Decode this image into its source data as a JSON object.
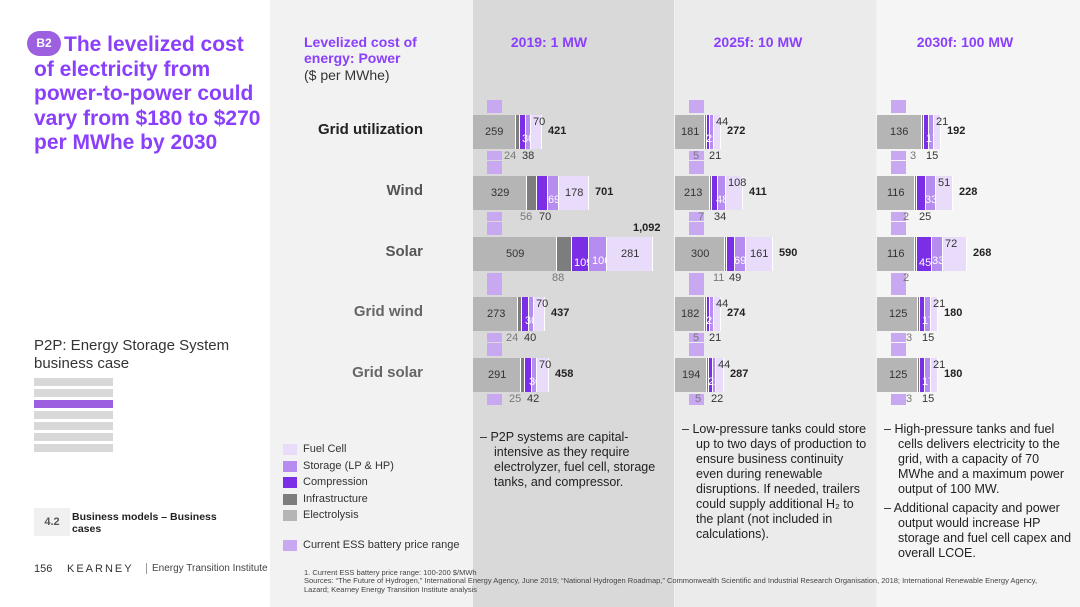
{
  "badge": "B2",
  "headline": "The levelized cost of electricity from power-to-power could vary from $180 to $270 per MWhe by 2030",
  "subtitle": "P2P: Energy Storage System business case",
  "section_number": "4.2",
  "section_title": "Business models – Business cases",
  "page_number": "156",
  "brand": "KEARNEY",
  "institute": "Energy Transition Institute",
  "chart_data": {
    "type": "bar",
    "orientation": "horizontal-stacked",
    "title": "Levelized cost of energy: Power",
    "unit": "($ per MWhe)",
    "categories": [
      "Grid utilization",
      "Wind",
      "Solar",
      "Grid wind",
      "Grid solar"
    ],
    "segment_order": [
      "Electrolysis",
      "Infrastructure",
      "Compression",
      "Storage (LP & HP)",
      "Fuel Cell"
    ],
    "panels": [
      {
        "name": "2019: 1 MW",
        "rows": [
          {
            "values": [
              259,
              24,
              38,
              30,
              70
            ],
            "total": "421",
            "battery_band": [
              100,
              200
            ]
          },
          {
            "values": [
              329,
              56,
              70,
              69,
              178
            ],
            "total": "701",
            "battery_band": [
              100,
              200
            ]
          },
          {
            "values": [
              509,
              88,
              109,
              106,
              281
            ],
            "total": "1,092",
            "battery_band": [
              100,
              200
            ]
          },
          {
            "values": [
              273,
              24,
              40,
              30,
              70
            ],
            "total": "437",
            "battery_band": [
              100,
              200
            ]
          },
          {
            "values": [
              291,
              25,
              42,
              30,
              70
            ],
            "total": "458",
            "battery_band": [
              100,
              200
            ]
          }
        ]
      },
      {
        "name": "2025f: 10 MW",
        "rows": [
          {
            "values": [
              181,
              5,
              21,
              22,
              44
            ],
            "total": "272",
            "battery_band": [
              100,
              200
            ]
          },
          {
            "values": [
              213,
              7,
              34,
              48,
              108
            ],
            "total": "411",
            "battery_band": [
              100,
              200
            ]
          },
          {
            "values": [
              300,
              11,
              49,
              69,
              161
            ],
            "total": "590",
            "battery_band": [
              100,
              200
            ]
          },
          {
            "values": [
              182,
              5,
              21,
              22,
              44
            ],
            "total": "274",
            "battery_band": [
              100,
              200
            ]
          },
          {
            "values": [
              194,
              5,
              22,
              22,
              44
            ],
            "total": "287",
            "battery_band": [
              100,
              200
            ]
          }
        ]
      },
      {
        "name": "2030f: 100 MW",
        "rows": [
          {
            "values": [
              136,
              3,
              15,
              17,
              21
            ],
            "total": "192",
            "battery_band": [
              100,
              200
            ]
          },
          {
            "values": [
              116,
              2,
              25,
              33,
              51
            ],
            "total": "228",
            "battery_band": [
              100,
              200
            ]
          },
          {
            "values": [
              116,
              2,
              45,
              33,
              72
            ],
            "total": "268",
            "battery_band": [
              100,
              200
            ]
          },
          {
            "values": [
              125,
              3,
              15,
              17,
              21
            ],
            "total": "180",
            "battery_band": [
              100,
              200
            ]
          },
          {
            "values": [
              125,
              3,
              15,
              17,
              21
            ],
            "total": "180",
            "battery_band": [
              100,
              200
            ]
          }
        ]
      }
    ],
    "legend": [
      {
        "name": "Fuel Cell",
        "color": "#e9dcfb"
      },
      {
        "name": "Storage (LP & HP)",
        "color": "#b78cf0"
      },
      {
        "name": "Compression",
        "color": "#7a2ee6"
      },
      {
        "name": "Infrastructure",
        "color": "#7d7d7d"
      },
      {
        "name": "Electrolysis",
        "color": "#b5b5b5"
      },
      {
        "name": "Current ESS battery price range",
        "color": "#c9a8f2"
      }
    ]
  },
  "notes": [
    [
      "P2P systems are capital-intensive as they require electrolyzer, fuel cell, storage tanks, and compressor."
    ],
    [
      "Low-pressure tanks could store up to two days of production to ensure business continuity even during renewable disruptions. If needed, trailers could supply additional H₂ to the plant (not included in calculations)."
    ],
    [
      "High-pressure tanks and fuel cells delivers electricity to the grid, with a capacity of 70 MWhe and a maximum power output of 100 MW.",
      "Additional capacity and power output would increase HP storage and fuel cell capex and overall LCOE."
    ]
  ],
  "footnote1": "1. Current ESS battery price range: 100-200 $/MWh",
  "sources": "Sources: “The Future of Hydrogen,” International Energy Agency, June 2019; “National Hydrogen Roadmap,” Commonwealth Scientific and Industrial Research Organisation, 2018; International Renewable Energy Agency, Lazard; Kearney Energy Transition Institute analysis"
}
